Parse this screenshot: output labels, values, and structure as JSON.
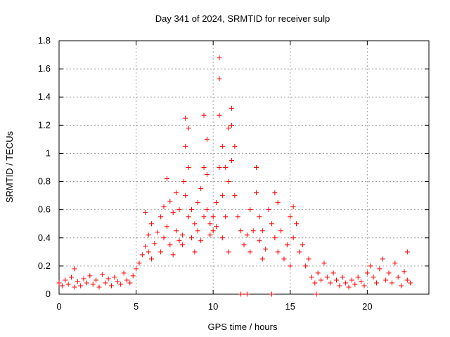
{
  "chart_data": {
    "type": "scatter",
    "title": "Day 341 of 2024, SRMTID for receiver sulp",
    "xlabel": "GPS time / hours",
    "ylabel": "SRMTID / TECUs",
    "xlim": [
      0,
      24
    ],
    "ylim": [
      0,
      1.8
    ],
    "xticks": [
      0,
      5,
      10,
      15,
      20
    ],
    "yticks": [
      0,
      0.2,
      0.4,
      0.6,
      0.8,
      1,
      1.2,
      1.4,
      1.6,
      1.8
    ],
    "xtick_labels": [
      "0",
      "5",
      "10",
      "15",
      "20"
    ],
    "ytick_labels": [
      "0",
      "0.2",
      "0.4",
      "0.6",
      "0.8",
      "1",
      "1.2",
      "1.4",
      "1.6",
      "1.8"
    ],
    "grid": true,
    "marker": "+",
    "color": "#ff0000",
    "series": [
      {
        "name": "SRMTID",
        "points": [
          [
            0.0,
            0.08
          ],
          [
            0.2,
            0.06
          ],
          [
            0.4,
            0.1
          ],
          [
            0.6,
            0.07
          ],
          [
            0.8,
            0.12
          ],
          [
            1.0,
            0.05
          ],
          [
            1.0,
            0.18
          ],
          [
            1.2,
            0.09
          ],
          [
            1.4,
            0.06
          ],
          [
            1.6,
            0.11
          ],
          [
            1.8,
            0.08
          ],
          [
            2.0,
            0.13
          ],
          [
            2.2,
            0.07
          ],
          [
            2.4,
            0.1
          ],
          [
            2.6,
            0.05
          ],
          [
            2.8,
            0.14
          ],
          [
            3.0,
            0.08
          ],
          [
            3.2,
            0.11
          ],
          [
            3.4,
            0.06
          ],
          [
            3.6,
            0.12
          ],
          [
            3.8,
            0.09
          ],
          [
            4.0,
            0.07
          ],
          [
            4.2,
            0.15
          ],
          [
            4.4,
            0.1
          ],
          [
            4.6,
            0.08
          ],
          [
            4.8,
            0.13
          ],
          [
            5.0,
            0.18
          ],
          [
            5.2,
            0.22
          ],
          [
            5.4,
            0.28
          ],
          [
            5.6,
            0.34
          ],
          [
            5.6,
            0.58
          ],
          [
            5.8,
            0.3
          ],
          [
            5.8,
            0.42
          ],
          [
            6.0,
            0.25
          ],
          [
            6.0,
            0.5
          ],
          [
            6.2,
            0.36
          ],
          [
            6.4,
            0.44
          ],
          [
            6.6,
            0.3
          ],
          [
            6.6,
            0.55
          ],
          [
            6.8,
            0.62
          ],
          [
            6.8,
            0.4
          ],
          [
            7.0,
            0.82
          ],
          [
            7.0,
            0.48
          ],
          [
            7.2,
            0.35
          ],
          [
            7.2,
            0.66
          ],
          [
            7.4,
            0.28
          ],
          [
            7.4,
            0.58
          ],
          [
            7.6,
            0.72
          ],
          [
            7.6,
            0.45
          ],
          [
            7.8,
            0.6
          ],
          [
            7.8,
            0.38
          ],
          [
            8.0,
            0.42
          ],
          [
            8.0,
            0.35
          ],
          [
            8.1,
            0.8
          ],
          [
            8.2,
            1.25
          ],
          [
            8.2,
            1.05
          ],
          [
            8.2,
            0.7
          ],
          [
            8.4,
            1.18
          ],
          [
            8.4,
            0.9
          ],
          [
            8.4,
            0.55
          ],
          [
            8.6,
            0.4
          ],
          [
            8.6,
            0.6
          ],
          [
            8.8,
            0.3
          ],
          [
            8.8,
            0.5
          ],
          [
            9.0,
            0.45
          ],
          [
            9.0,
            0.65
          ],
          [
            9.2,
            0.75
          ],
          [
            9.2,
            0.38
          ],
          [
            9.4,
            0.9
          ],
          [
            9.4,
            1.27
          ],
          [
            9.4,
            0.55
          ],
          [
            9.6,
            1.1
          ],
          [
            9.6,
            0.85
          ],
          [
            9.6,
            0.6
          ],
          [
            9.8,
            0.5
          ],
          [
            9.8,
            0.42
          ],
          [
            10.0,
            0.55
          ],
          [
            10.0,
            0.45
          ],
          [
            10.2,
            0.65
          ],
          [
            10.2,
            0.48
          ],
          [
            10.4,
            1.68
          ],
          [
            10.4,
            1.53
          ],
          [
            10.4,
            1.27
          ],
          [
            10.4,
            0.9
          ],
          [
            10.6,
            1.05
          ],
          [
            10.6,
            0.7
          ],
          [
            10.6,
            0.4
          ],
          [
            10.8,
            0.9
          ],
          [
            10.8,
            0.55
          ],
          [
            11.0,
            1.18
          ],
          [
            11.0,
            0.8
          ],
          [
            11.0,
            0.3
          ],
          [
            11.2,
            1.32
          ],
          [
            11.2,
            1.2
          ],
          [
            11.2,
            0.95
          ],
          [
            11.4,
            1.05
          ],
          [
            11.4,
            0.7
          ],
          [
            11.6,
            0.55
          ],
          [
            11.8,
            0.45
          ],
          [
            11.8,
            0.0
          ],
          [
            12.0,
            0.35
          ],
          [
            12.2,
            0.0
          ],
          [
            12.2,
            0.42
          ],
          [
            12.4,
            0.6
          ],
          [
            12.4,
            0.3
          ],
          [
            12.6,
            0.45
          ],
          [
            12.8,
            0.9
          ],
          [
            12.8,
            0.72
          ],
          [
            13.0,
            0.55
          ],
          [
            13.0,
            0.38
          ],
          [
            13.2,
            0.25
          ],
          [
            13.2,
            0.45
          ],
          [
            13.4,
            0.32
          ],
          [
            13.6,
            0.6
          ],
          [
            13.8,
            0.0
          ],
          [
            13.8,
            0.5
          ],
          [
            14.0,
            0.72
          ],
          [
            14.0,
            0.4
          ],
          [
            14.2,
            0.65
          ],
          [
            14.2,
            0.3
          ],
          [
            14.4,
            0.45
          ],
          [
            14.6,
            0.25
          ],
          [
            14.8,
            0.35
          ],
          [
            15.0,
            0.55
          ],
          [
            15.0,
            0.2
          ],
          [
            15.2,
            0.62
          ],
          [
            15.2,
            0.4
          ],
          [
            15.4,
            0.5
          ],
          [
            15.6,
            0.3
          ],
          [
            15.8,
            0.35
          ],
          [
            16.0,
            0.2
          ],
          [
            16.2,
            0.25
          ],
          [
            16.4,
            0.12
          ],
          [
            16.6,
            0.08
          ],
          [
            16.7,
            0.0
          ],
          [
            16.8,
            0.15
          ],
          [
            17.0,
            0.1
          ],
          [
            17.2,
            0.22
          ],
          [
            17.4,
            0.12
          ],
          [
            17.6,
            0.08
          ],
          [
            17.8,
            0.15
          ],
          [
            18.0,
            0.1
          ],
          [
            18.2,
            0.06
          ],
          [
            18.4,
            0.12
          ],
          [
            18.6,
            0.08
          ],
          [
            18.8,
            0.05
          ],
          [
            19.0,
            0.1
          ],
          [
            19.2,
            0.07
          ],
          [
            19.4,
            0.12
          ],
          [
            19.6,
            0.09
          ],
          [
            19.8,
            0.06
          ],
          [
            20.0,
            0.15
          ],
          [
            20.2,
            0.2
          ],
          [
            20.4,
            0.12
          ],
          [
            20.6,
            0.08
          ],
          [
            20.8,
            0.18
          ],
          [
            21.0,
            0.25
          ],
          [
            21.2,
            0.1
          ],
          [
            21.4,
            0.15
          ],
          [
            21.6,
            0.08
          ],
          [
            21.8,
            0.22
          ],
          [
            22.0,
            0.12
          ],
          [
            22.2,
            0.06
          ],
          [
            22.4,
            0.16
          ],
          [
            22.6,
            0.3
          ],
          [
            22.6,
            0.1
          ],
          [
            22.8,
            0.08
          ]
        ]
      }
    ]
  }
}
